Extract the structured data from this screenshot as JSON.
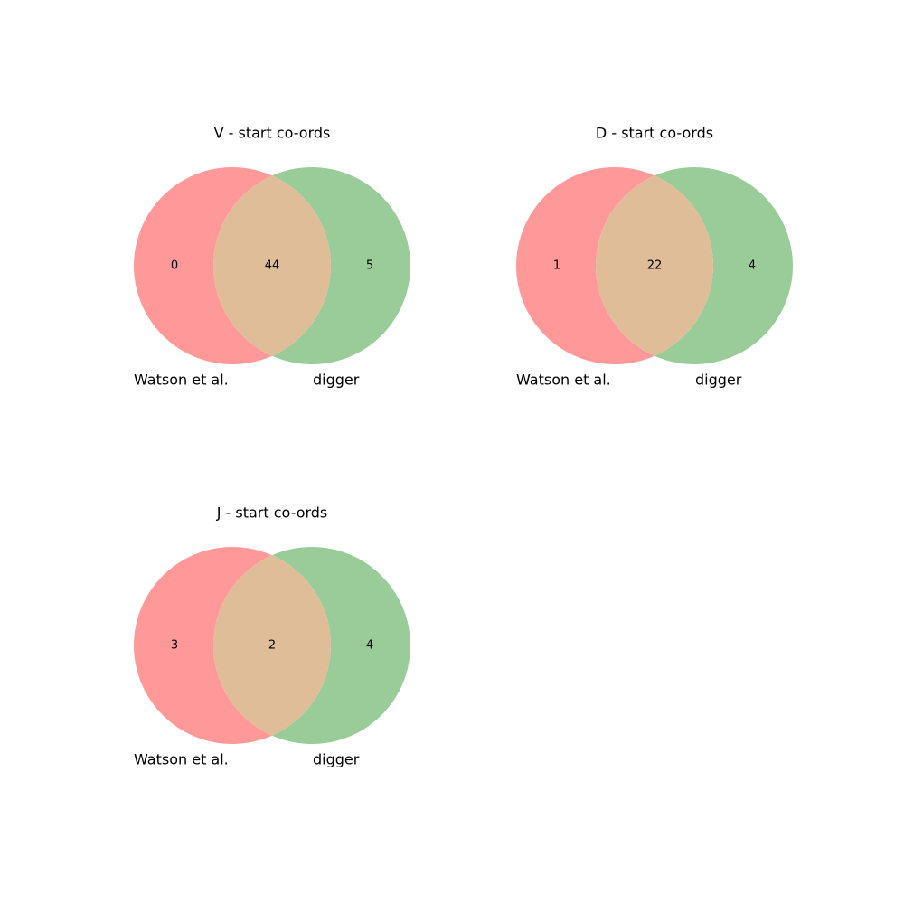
{
  "colors": {
    "set_a": "#ff9999",
    "set_b": "#99cc99",
    "intersection": "#e0bd99"
  },
  "chart_data": [
    {
      "type": "venn",
      "title": "V - start co-ords",
      "sets": [
        "Watson et al.",
        "digger"
      ],
      "counts": {
        "only_a": "0",
        "both": "44",
        "only_b": "5"
      }
    },
    {
      "type": "venn",
      "title": "D - start co-ords",
      "sets": [
        "Watson et al.",
        "digger"
      ],
      "counts": {
        "only_a": "1",
        "both": "22",
        "only_b": "4"
      }
    },
    {
      "type": "venn",
      "title": "J - start co-ords",
      "sets": [
        "Watson et al.",
        "digger"
      ],
      "counts": {
        "only_a": "3",
        "both": "2",
        "only_b": "4"
      }
    }
  ]
}
